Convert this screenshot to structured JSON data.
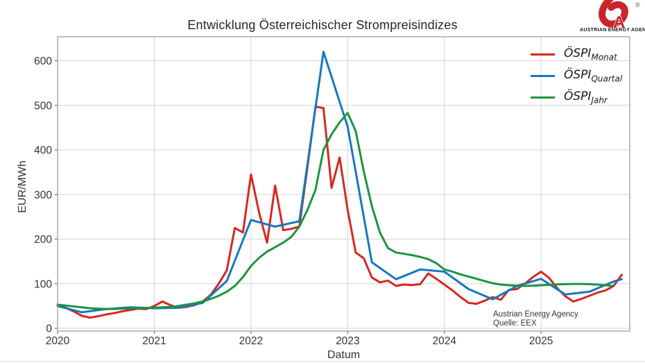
{
  "logo": {
    "registered": "®",
    "caption": "AUSTRIAN ENERGY AGENCY"
  },
  "annotation": {
    "line1": "Austrian Energy Agency",
    "line2": "Quelle: EEX"
  },
  "legend": {
    "items": [
      {
        "base": "ÖSPI",
        "sub": "Monat",
        "color": "#d6281e"
      },
      {
        "base": "ÖSPI",
        "sub": "Quartal",
        "color": "#1578bf"
      },
      {
        "base": "ÖSPI",
        "sub": "Jahr",
        "color": "#1d9440"
      }
    ]
  },
  "chart_data": {
    "type": "line",
    "title": "Entwicklung Österreichischer Strompreisindizes",
    "xlabel": "Datum",
    "ylabel": "EUR/MWh",
    "x_ticks": [
      "2020",
      "2021",
      "2022",
      "2023",
      "2024",
      "2025"
    ],
    "y_ticks": [
      0,
      100,
      200,
      300,
      400,
      500,
      600
    ],
    "x_range": [
      2020.0,
      2025.9167
    ],
    "ylim": [
      -6,
      653
    ],
    "grid": true,
    "legend_position": "upper right",
    "source_note": [
      "Austrian Energy Agency",
      "Quelle: EEX"
    ],
    "series": [
      {
        "name": "ÖSPI Monat",
        "color": "#d6281e",
        "x_start": 2020,
        "x_step_months": 1,
        "values": [
          52,
          46,
          38,
          28,
          24,
          27,
          31,
          34,
          38,
          41,
          44,
          43,
          50,
          60,
          52,
          46,
          48,
          52,
          60,
          75,
          100,
          130,
          225,
          215,
          345,
          260,
          192,
          320,
          220,
          223,
          228,
          360,
          497,
          494,
          315,
          383,
          265,
          170,
          157,
          114,
          103,
          107,
          95,
          98,
          97,
          99,
          123,
          111,
          98,
          85,
          70,
          57,
          55,
          62,
          70,
          64,
          86,
          88,
          100,
          115,
          127,
          113,
          90,
          72,
          60,
          66,
          73,
          80,
          85,
          95,
          120
        ]
      },
      {
        "name": "ÖSPI Quartal",
        "color": "#1578bf",
        "x_start": 2020,
        "x_step_months": 3,
        "values": [
          50,
          36,
          43,
          47,
          45,
          46,
          57,
          106,
          243,
          228,
          240,
          620,
          452,
          148,
          110,
          132,
          127,
          88,
          65,
          95,
          111,
          76,
          82,
          105
        ],
        "extra": [
          [
            2025.8333,
            110
          ]
        ]
      },
      {
        "name": "ÖSPI Jahr",
        "color": "#1d9440",
        "x_start": 2020,
        "x_step_months": 1,
        "values": [
          53,
          51,
          49,
          47,
          45,
          44,
          43.5,
          43.5,
          44,
          44.5,
          45,
          45.5,
          46,
          47,
          48,
          50,
          53,
          56,
          60,
          66,
          73,
          82,
          95,
          115,
          140,
          158,
          172,
          182,
          192,
          205,
          228,
          265,
          310,
          400,
          435,
          462,
          483,
          442,
          352,
          274,
          215,
          180,
          170,
          167,
          164,
          160,
          155,
          146,
          132,
          127,
          121,
          116,
          111,
          106,
          101,
          98,
          96.5,
          95.5,
          95,
          95.5,
          96.5,
          97.5,
          98.5,
          99,
          99.5,
          99.5,
          99,
          98,
          96.5,
          95
        ]
      }
    ]
  }
}
